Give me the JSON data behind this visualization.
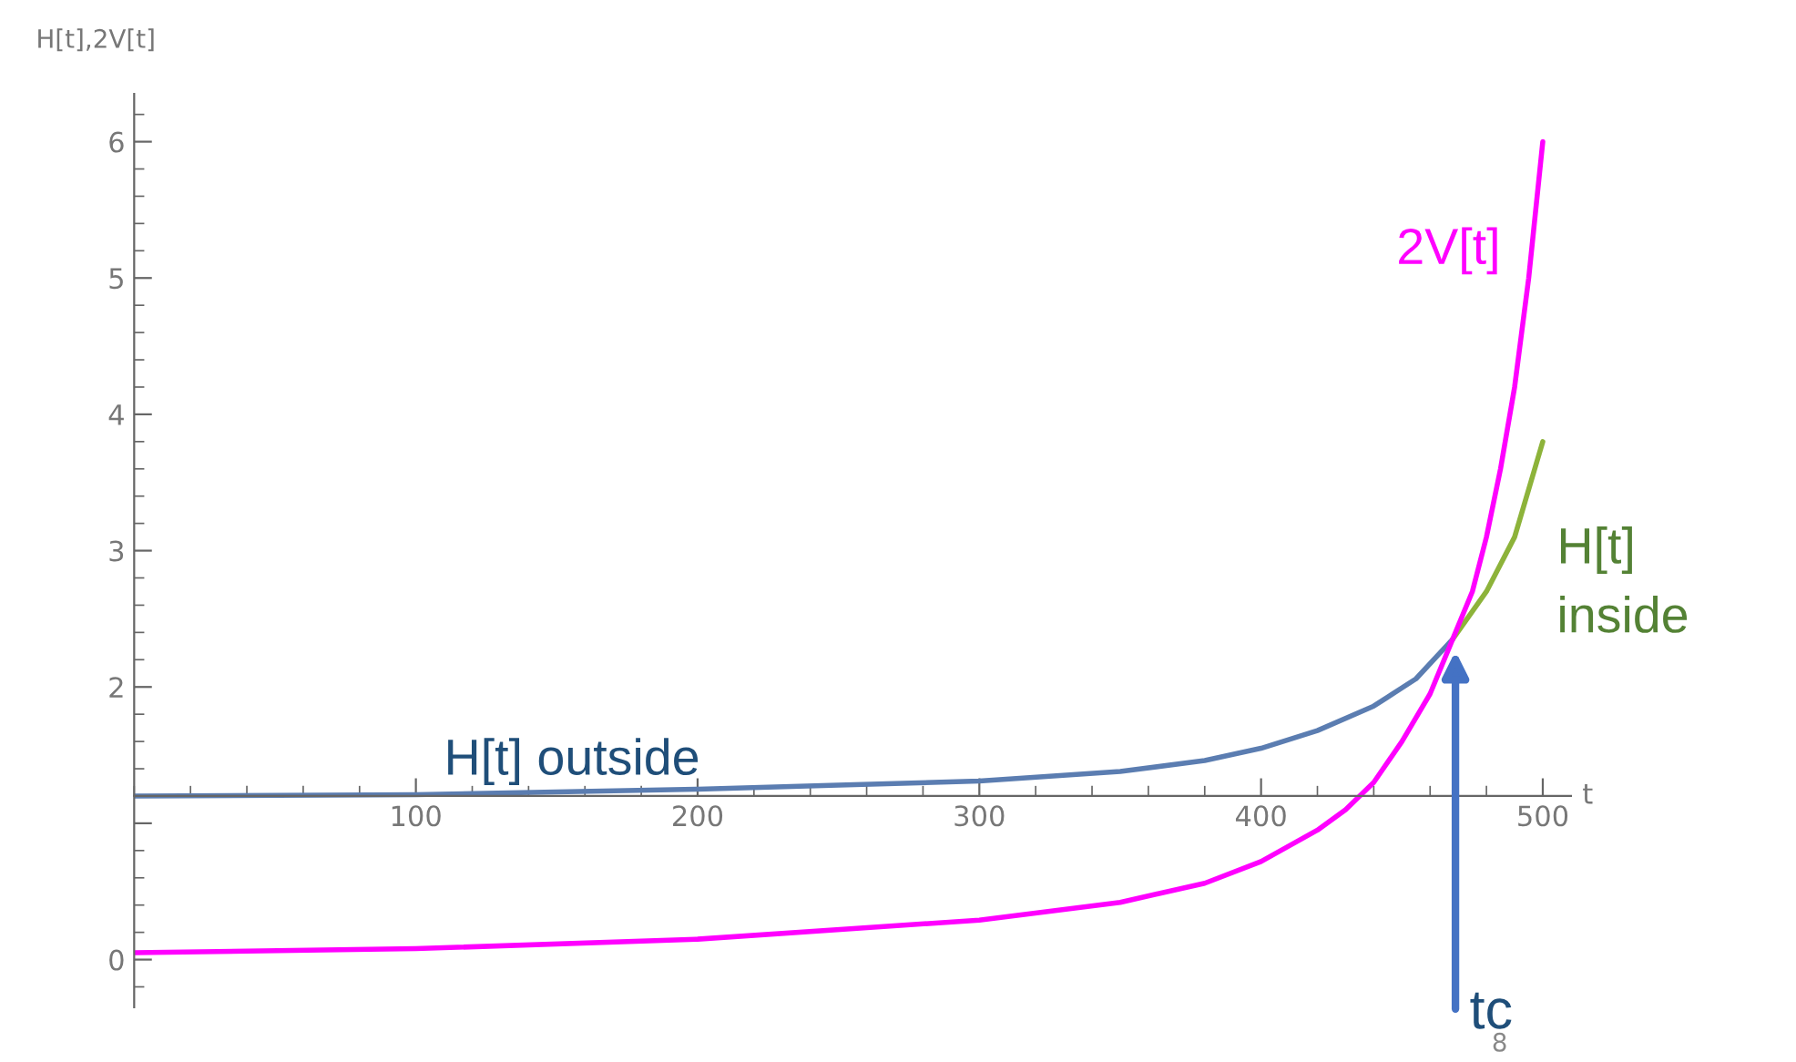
{
  "chart_data": {
    "type": "line",
    "ylabel": "H[t],2V[t]",
    "xlabel": "t",
    "xlim": [
      0,
      510
    ],
    "ylim": [
      -0.35,
      6.35
    ],
    "xticks": [
      100,
      200,
      300,
      400,
      500
    ],
    "yticks": [
      0,
      {
        "value": 1,
        "label": null
      },
      2,
      3,
      4,
      5,
      6
    ],
    "series": [
      {
        "name": "H[t] outside",
        "color": "#5b7db1",
        "x": [
          0,
          100,
          200,
          250,
          300,
          350,
          380,
          400,
          420,
          440,
          455,
          468
        ],
        "values": [
          1.2,
          1.21,
          1.25,
          1.28,
          1.31,
          1.38,
          1.46,
          1.55,
          1.68,
          1.86,
          2.06,
          2.35
        ]
      },
      {
        "name": "H[t]\ninside",
        "color": "#8db33a",
        "x": [
          468,
          480,
          490,
          500
        ],
        "values": [
          2.35,
          2.7,
          3.1,
          3.8
        ]
      },
      {
        "name": "2V[t]",
        "color": "#ff00ff",
        "x": [
          0,
          100,
          200,
          300,
          350,
          380,
          400,
          420,
          430,
          440,
          450,
          460,
          468,
          475,
          480,
          485,
          490,
          495,
          500
        ],
        "values": [
          0.05,
          0.08,
          0.15,
          0.29,
          0.42,
          0.56,
          0.72,
          0.95,
          1.1,
          1.3,
          1.6,
          1.95,
          2.35,
          2.7,
          3.1,
          3.6,
          4.2,
          5.0,
          6.0
        ]
      }
    ],
    "annotations": [
      {
        "text": "tc",
        "x": 469,
        "y": 2.3
      },
      "8"
    ],
    "grid": false,
    "legend": false
  }
}
